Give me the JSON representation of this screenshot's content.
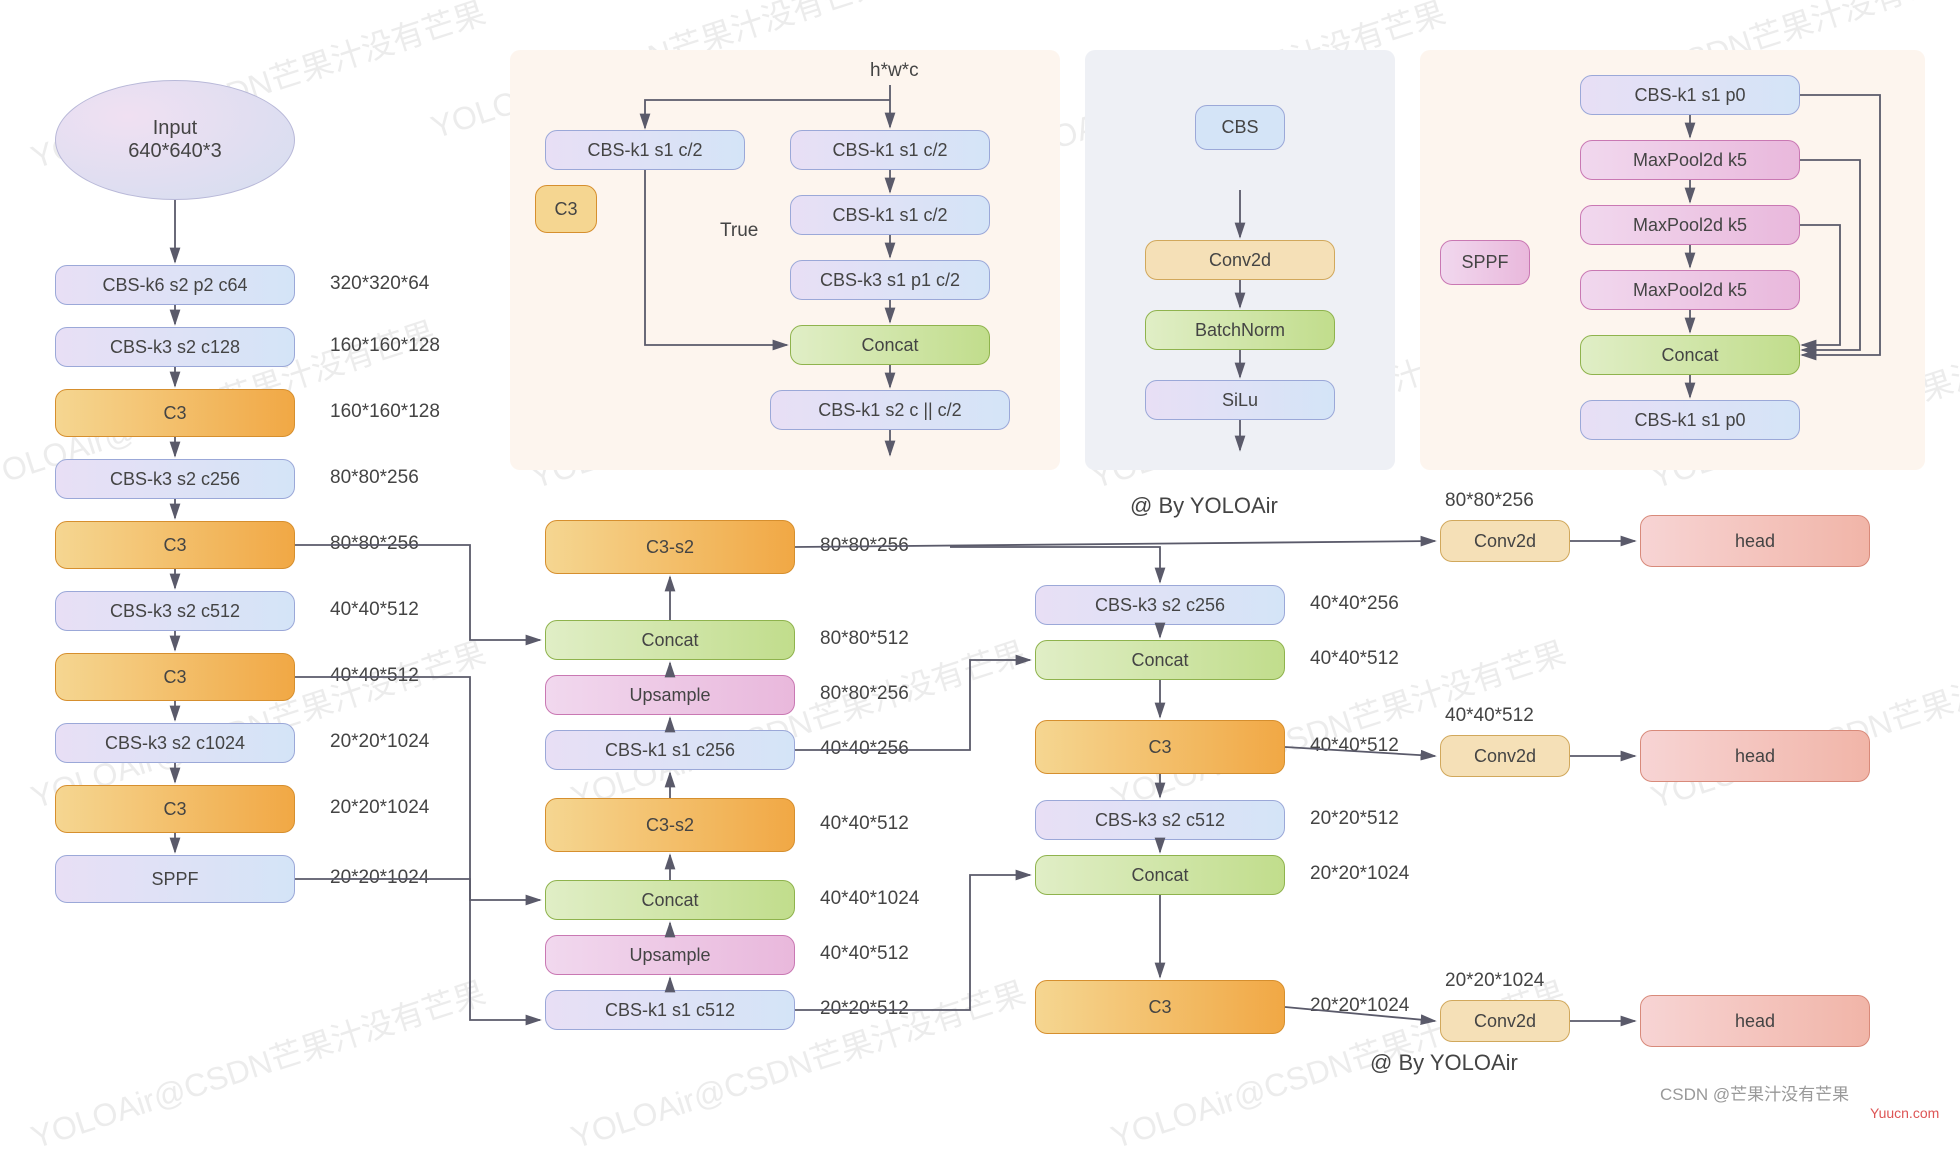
{
  "input": {
    "label": "Input\n640*640*3"
  },
  "backbone": [
    {
      "text": "CBS-k6 s2 p2 c64",
      "dim": "320*320*64",
      "cls": "cbs"
    },
    {
      "text": "CBS-k3 s2 c128",
      "dim": "160*160*128",
      "cls": "cbs"
    },
    {
      "text": "C3",
      "dim": "160*160*128",
      "cls": "c3"
    },
    {
      "text": "CBS-k3 s2 c256",
      "dim": "80*80*256",
      "cls": "cbs"
    },
    {
      "text": "C3",
      "dim": "80*80*256",
      "cls": "c3"
    },
    {
      "text": "CBS-k3 s2 c512",
      "dim": "40*40*512",
      "cls": "cbs"
    },
    {
      "text": "C3",
      "dim": "40*40*512",
      "cls": "c3"
    },
    {
      "text": "CBS-k3 s2 c1024",
      "dim": "20*20*1024",
      "cls": "cbs"
    },
    {
      "text": "C3",
      "dim": "20*20*1024",
      "cls": "c3"
    },
    {
      "text": "SPPF",
      "dim": "20*20*1024",
      "cls": "sppf"
    }
  ],
  "neck1": [
    {
      "text": "CBS-k1 s1 c512",
      "dim": "20*20*512",
      "cls": "cbs"
    },
    {
      "text": "Upsample",
      "dim": "40*40*512",
      "cls": "up"
    },
    {
      "text": "Concat",
      "dim": "40*40*1024",
      "cls": "concat"
    },
    {
      "text": "C3-s2",
      "dim": "40*40*512",
      "cls": "c3"
    },
    {
      "text": "CBS-k1 s1 c256",
      "dim": "40*40*256",
      "cls": "cbs"
    },
    {
      "text": "Upsample",
      "dim": "80*80*256",
      "cls": "up"
    },
    {
      "text": "Concat",
      "dim": "80*80*512",
      "cls": "concat"
    },
    {
      "text": "C3-s2",
      "dim": "80*80*256",
      "cls": "c3"
    }
  ],
  "neck2": [
    {
      "text": "CBS-k3 s2 c256",
      "dim": "40*40*256",
      "cls": "cbs"
    },
    {
      "text": "Concat",
      "dim": "40*40*512",
      "cls": "concat"
    },
    {
      "text": "C3",
      "dim": "40*40*512",
      "cls": "c3"
    },
    {
      "text": "CBS-k3 s2 c512",
      "dim": "20*20*512",
      "cls": "cbs"
    },
    {
      "text": "Concat",
      "dim": "20*20*1024",
      "cls": "concat"
    },
    {
      "text": "C3",
      "dim": "20*20*1024",
      "cls": "c3"
    }
  ],
  "heads": [
    {
      "conv": "Conv2d",
      "dim": "80*80*256",
      "head": "head"
    },
    {
      "conv": "Conv2d",
      "dim": "40*40*512",
      "head": "head"
    },
    {
      "conv": "Conv2d",
      "dim": "20*20*1024",
      "head": "head"
    }
  ],
  "c3panel": {
    "tag": "C3",
    "hwc": "h*w*c",
    "true": "True",
    "n": [
      "CBS-k1 s1 c/2",
      "CBS-k1 s1 c/2",
      "CBS-k1 s1 c/2",
      "CBS-k3 s1 p1 c/2",
      "Concat",
      "CBS-k1 s2 c || c/2"
    ]
  },
  "cbspanel": {
    "tag": "CBS",
    "n": [
      "Conv2d",
      "BatchNorm",
      "SiLu"
    ]
  },
  "sppfpanel": {
    "tag": "SPPF",
    "n": [
      "CBS-k1 s1 p0",
      "MaxPool2d k5",
      "MaxPool2d k5",
      "MaxPool2d k5",
      "Concat",
      "CBS-k1 s1 p0"
    ]
  },
  "credits": {
    "by": "@ By YOLOAir",
    "csdn": "CSDN @芒果汁没有芒果",
    "yuucn": "Yuucn.com"
  },
  "colors": {
    "cbs_border": "#9ba8d8",
    "c3_border": "#d68f2e",
    "concat_border": "#8fb34d",
    "up_border": "#c978b3",
    "head_border": "#d88a7a",
    "arrow": "#5a5a6a"
  },
  "watermark": "YOLOAir@CSDN芒果汁没有芒果"
}
